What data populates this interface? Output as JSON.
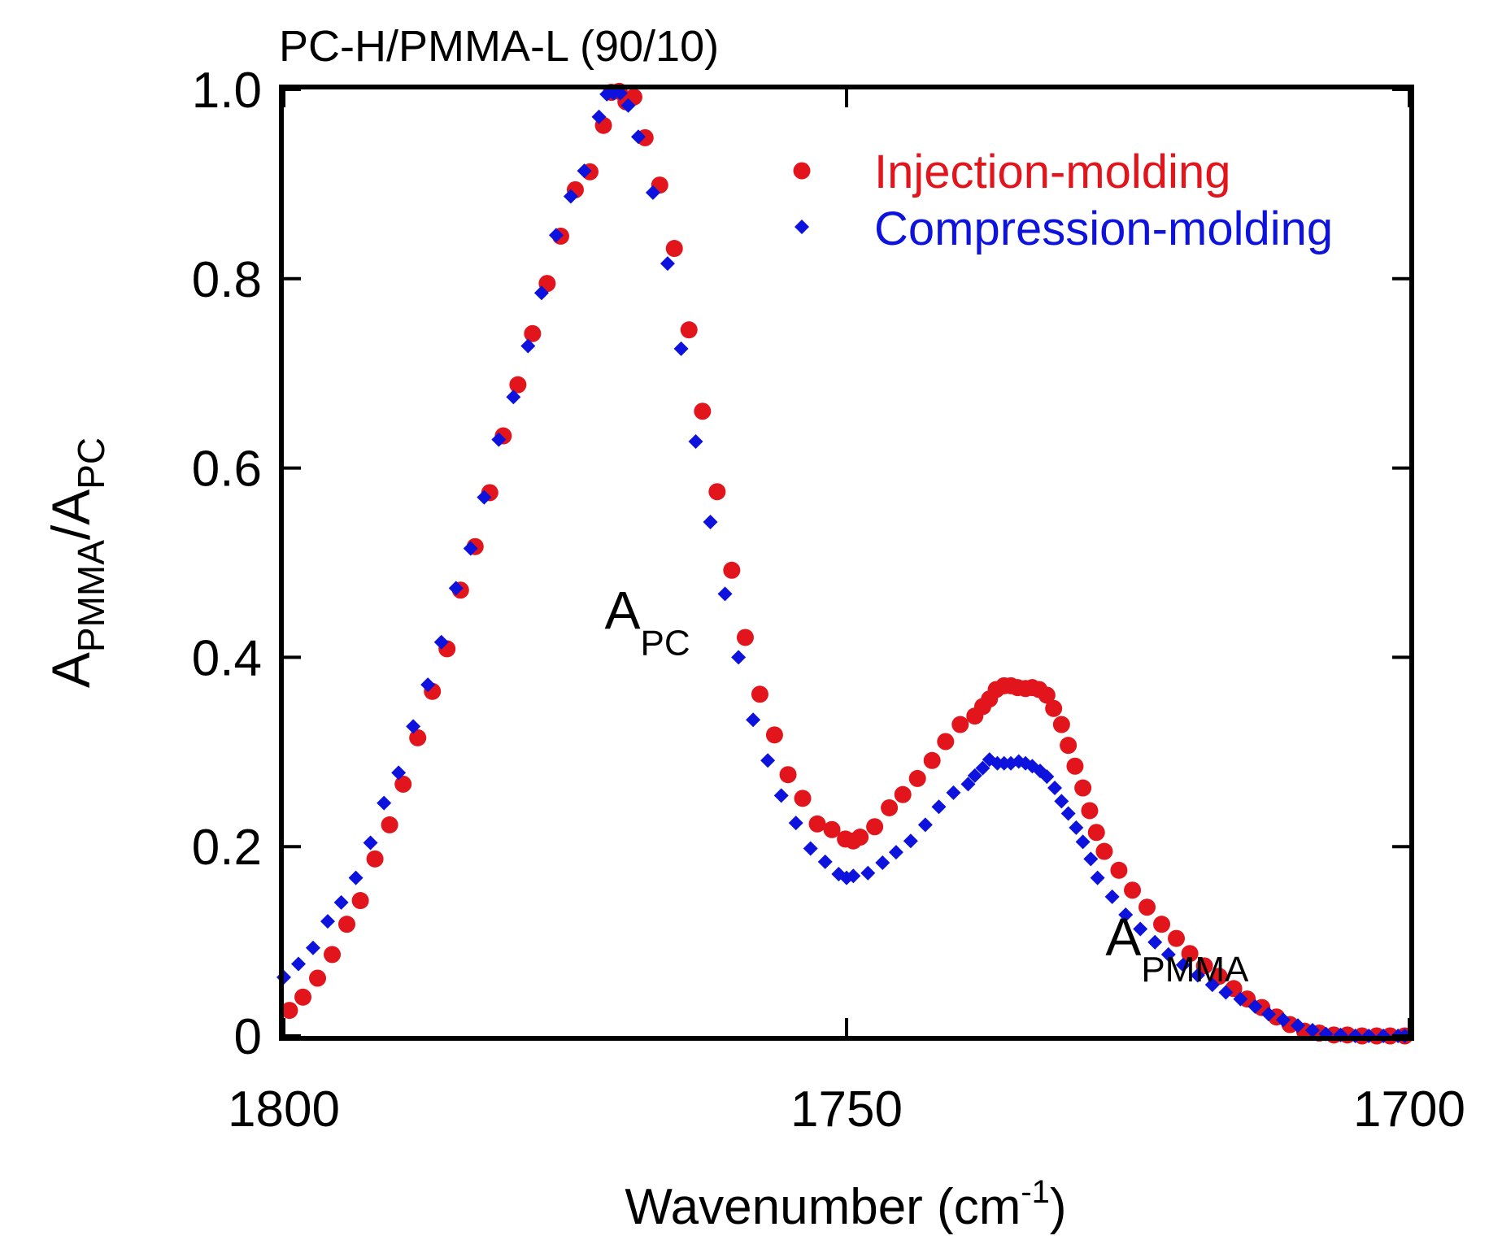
{
  "chart_data": {
    "type": "scatter",
    "title": "PC-H/PMMA-L (90/10)",
    "xlabel": "Wavenumber (cm",
    "xlabel_sup": "-1",
    "xlabel_close": ")",
    "ylabel": {
      "a1": "A",
      "sub1": "PMMA",
      "slash": "/A",
      "sub2": "PC"
    },
    "xlim": [
      1800,
      1700
    ],
    "ylim": [
      0,
      1.0
    ],
    "x_ticks": [
      1800,
      1750,
      1700
    ],
    "x_tick_labels": [
      "1800",
      "1750",
      "1700"
    ],
    "y_ticks": [
      0,
      0.2,
      0.4,
      0.6,
      0.8,
      1.0
    ],
    "y_tick_labels": [
      "0",
      "0.2",
      "0.4",
      "0.6",
      "0.8",
      "1.0"
    ],
    "legend_position": "top-right",
    "annotations": [
      {
        "id": "a-pc",
        "main": "A",
        "sub": "PC",
        "x": 1771.5,
        "y": 0.43
      },
      {
        "id": "a-pmma",
        "main": "A",
        "sub": "PMMA",
        "x": 1727,
        "y": 0.085
      }
    ],
    "series": [
      {
        "name": "Injection-molding",
        "color": "#e2141c",
        "marker": "circle",
        "x": [
          1799.5,
          1798.3,
          1797.0,
          1795.7,
          1794.4,
          1793.2,
          1791.9,
          1790.6,
          1789.4,
          1788.1,
          1786.8,
          1785.5,
          1784.3,
          1783.0,
          1781.7,
          1780.5,
          1779.2,
          1777.9,
          1776.6,
          1775.4,
          1774.1,
          1772.8,
          1771.6,
          1770.9,
          1770.2,
          1769.6,
          1768.9,
          1767.9,
          1766.6,
          1765.3,
          1764.0,
          1762.8,
          1761.5,
          1760.2,
          1759.0,
          1757.7,
          1756.4,
          1755.2,
          1753.9,
          1752.6,
          1751.3,
          1750.1,
          1749.4,
          1748.8,
          1747.5,
          1746.2,
          1745.0,
          1743.7,
          1742.4,
          1741.2,
          1739.9,
          1738.6,
          1737.9,
          1737.3,
          1736.7,
          1736.0,
          1735.4,
          1734.8,
          1734.1,
          1733.5,
          1732.9,
          1732.2,
          1731.6,
          1730.9,
          1730.3,
          1729.7,
          1729.0,
          1728.4,
          1727.8,
          1727.1,
          1725.8,
          1724.6,
          1723.3,
          1722.0,
          1720.7,
          1719.5,
          1718.2,
          1716.9,
          1715.6,
          1714.4,
          1713.1,
          1711.8,
          1710.6,
          1709.3,
          1708.0,
          1706.7,
          1705.5,
          1704.2,
          1702.9,
          1701.7,
          1700.4
        ],
        "y": [
          0.027,
          0.041,
          0.061,
          0.086,
          0.118,
          0.143,
          0.187,
          0.223,
          0.266,
          0.315,
          0.364,
          0.409,
          0.471,
          0.517,
          0.574,
          0.634,
          0.688,
          0.742,
          0.795,
          0.845,
          0.894,
          0.913,
          0.962,
          0.997,
          0.998,
          0.987,
          0.992,
          0.949,
          0.899,
          0.832,
          0.746,
          0.66,
          0.575,
          0.492,
          0.421,
          0.361,
          0.318,
          0.276,
          0.251,
          0.224,
          0.218,
          0.208,
          0.206,
          0.21,
          0.221,
          0.241,
          0.255,
          0.272,
          0.291,
          0.311,
          0.329,
          0.338,
          0.348,
          0.356,
          0.366,
          0.37,
          0.37,
          0.368,
          0.367,
          0.368,
          0.366,
          0.36,
          0.346,
          0.329,
          0.307,
          0.285,
          0.262,
          0.238,
          0.215,
          0.195,
          0.175,
          0.154,
          0.136,
          0.118,
          0.103,
          0.087,
          0.074,
          0.063,
          0.05,
          0.039,
          0.03,
          0.02,
          0.012,
          0.005,
          0.003,
          0.001,
          0.001,
          0.0,
          0.0,
          0.0,
          0.0
        ]
      },
      {
        "name": "Compression-molding",
        "color": "#0d12dd",
        "marker": "diamond",
        "x": [
          1800.0,
          1798.7,
          1797.4,
          1796.1,
          1794.9,
          1793.6,
          1792.3,
          1791.1,
          1789.8,
          1788.5,
          1787.2,
          1786.0,
          1784.7,
          1783.4,
          1782.2,
          1780.9,
          1779.6,
          1778.3,
          1777.1,
          1775.8,
          1774.5,
          1773.3,
          1772.0,
          1771.3,
          1770.7,
          1770.1,
          1769.4,
          1768.5,
          1767.2,
          1765.9,
          1764.7,
          1763.4,
          1762.1,
          1760.8,
          1759.6,
          1758.3,
          1757.0,
          1755.8,
          1754.5,
          1753.2,
          1751.9,
          1750.7,
          1750.0,
          1749.4,
          1748.1,
          1746.8,
          1745.6,
          1744.3,
          1743.0,
          1741.8,
          1740.5,
          1739.2,
          1738.6,
          1737.9,
          1737.3,
          1736.6,
          1736.0,
          1735.4,
          1734.7,
          1734.1,
          1733.5,
          1732.8,
          1732.2,
          1731.5,
          1730.9,
          1730.3,
          1729.6,
          1729.0,
          1728.3,
          1727.7,
          1726.4,
          1725.2,
          1723.9,
          1722.6,
          1721.4,
          1720.1,
          1718.8,
          1717.5,
          1716.3,
          1715.0,
          1713.7,
          1712.5,
          1711.2,
          1709.9,
          1708.6,
          1707.4,
          1706.1,
          1704.8,
          1703.6,
          1702.3,
          1701.0,
          1700.4
        ],
        "y": [
          0.062,
          0.076,
          0.093,
          0.121,
          0.141,
          0.167,
          0.204,
          0.246,
          0.278,
          0.327,
          0.371,
          0.416,
          0.473,
          0.515,
          0.569,
          0.63,
          0.675,
          0.729,
          0.785,
          0.846,
          0.887,
          0.914,
          0.971,
          0.995,
          0.996,
          0.996,
          0.983,
          0.95,
          0.891,
          0.816,
          0.726,
          0.628,
          0.543,
          0.467,
          0.4,
          0.334,
          0.291,
          0.254,
          0.225,
          0.198,
          0.184,
          0.171,
          0.167,
          0.169,
          0.172,
          0.183,
          0.194,
          0.206,
          0.223,
          0.242,
          0.257,
          0.266,
          0.275,
          0.283,
          0.292,
          0.288,
          0.288,
          0.288,
          0.29,
          0.288,
          0.285,
          0.28,
          0.274,
          0.262,
          0.248,
          0.235,
          0.22,
          0.205,
          0.187,
          0.167,
          0.147,
          0.128,
          0.113,
          0.099,
          0.086,
          0.075,
          0.064,
          0.054,
          0.046,
          0.039,
          0.031,
          0.023,
          0.017,
          0.011,
          0.006,
          0.002,
          0.001,
          0.0,
          0.0,
          0.0,
          0.0,
          0.0
        ]
      }
    ]
  }
}
